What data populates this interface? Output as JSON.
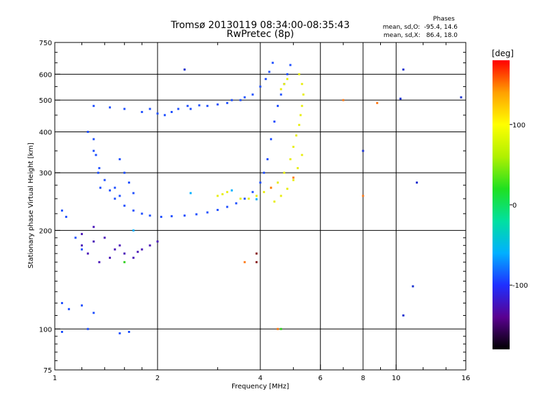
{
  "chart_data": {
    "type": "scatter",
    "title": "Tromsø 20130119 08:34:00-08:35:43",
    "subtitle": "RwPretec (8p)",
    "xlabel": "Frequency [MHz]",
    "ylabel": "Stationary phase Virtual Height [km]",
    "xscale": "log",
    "yscale": "log",
    "xlim": [
      1,
      16
    ],
    "ylim": [
      75,
      750
    ],
    "grid": true,
    "x_ticks": [
      1,
      2,
      4,
      6,
      8,
      10,
      16
    ],
    "x_tick_labels": [
      "1",
      "2",
      "4",
      "6",
      "8",
      "10",
      "16"
    ],
    "y_ticks": [
      75,
      100,
      200,
      300,
      400,
      500,
      600,
      750
    ],
    "y_tick_labels": [
      "75",
      "100",
      "200",
      "300",
      "400",
      "500",
      "600",
      "750"
    ],
    "legend_title": "Phases",
    "legend_lines": [
      "mean, sd,O:  -95.4, 14.6",
      "mean, sd,X:   86.4, 18.0"
    ],
    "colorbar": {
      "label": "[deg]",
      "range": [
        -180,
        180
      ],
      "tick_values": [
        100,
        0,
        -100
      ],
      "tick_labels": [
        "100",
        "0",
        "-100"
      ],
      "stops": [
        "#000000",
        "#5a0090",
        "#1f2fff",
        "#00b0ff",
        "#00e0a0",
        "#20e020",
        "#b0f000",
        "#ffff00",
        "#ffa000",
        "#ff0000"
      ]
    },
    "series": [
      {
        "color": "#1f4fff",
        "points": [
          [
            2.05,
            220
          ],
          [
            2.2,
            221
          ],
          [
            2.4,
            222
          ],
          [
            2.6,
            224
          ],
          [
            2.8,
            227
          ],
          [
            3.0,
            231
          ],
          [
            3.2,
            236
          ],
          [
            3.4,
            242
          ],
          [
            3.6,
            250
          ],
          [
            3.8,
            262
          ],
          [
            4.0,
            280
          ],
          [
            4.1,
            300
          ],
          [
            4.2,
            330
          ],
          [
            4.3,
            380
          ],
          [
            4.4,
            430
          ],
          [
            4.5,
            480
          ],
          [
            4.6,
            520
          ],
          [
            4.7,
            560
          ],
          [
            4.8,
            600
          ],
          [
            4.9,
            640
          ],
          [
            1.25,
            400
          ],
          [
            1.3,
            350
          ],
          [
            1.35,
            310
          ],
          [
            1.4,
            285
          ],
          [
            1.45,
            265
          ],
          [
            1.5,
            250
          ],
          [
            1.6,
            238
          ],
          [
            1.7,
            230
          ],
          [
            1.8,
            225
          ],
          [
            1.9,
            222
          ],
          [
            1.3,
            480
          ],
          [
            1.45,
            475
          ],
          [
            1.6,
            470
          ],
          [
            1.8,
            460
          ],
          [
            2.0,
            455
          ],
          [
            2.2,
            460
          ],
          [
            2.5,
            470
          ],
          [
            2.8,
            480
          ],
          [
            3.0,
            485
          ],
          [
            3.2,
            490
          ],
          [
            3.5,
            500
          ],
          [
            3.8,
            520
          ],
          [
            4.0,
            550
          ],
          [
            1.05,
            230
          ],
          [
            1.08,
            220
          ],
          [
            1.15,
            190
          ],
          [
            1.2,
            175
          ],
          [
            1.05,
            120
          ],
          [
            1.1,
            115
          ],
          [
            1.2,
            118
          ],
          [
            1.3,
            112
          ],
          [
            1.05,
            98
          ],
          [
            1.25,
            100
          ],
          [
            1.55,
            97
          ],
          [
            1.65,
            98
          ],
          [
            1.3,
            380
          ],
          [
            1.32,
            340
          ],
          [
            1.34,
            300
          ],
          [
            1.36,
            270
          ],
          [
            1.55,
            330
          ],
          [
            1.6,
            300
          ],
          [
            1.65,
            280
          ],
          [
            1.7,
            260
          ],
          [
            1.5,
            270
          ],
          [
            1.55,
            255
          ],
          [
            2.3,
            470
          ],
          [
            2.1,
            450
          ],
          [
            1.9,
            470
          ],
          [
            2.45,
            480
          ],
          [
            2.65,
            482
          ],
          [
            3.3,
            500
          ],
          [
            3.6,
            510
          ],
          [
            4.15,
            580
          ],
          [
            4.25,
            610
          ],
          [
            4.35,
            650
          ]
        ]
      },
      {
        "color": "#4a18b8",
        "points": [
          [
            1.2,
            180
          ],
          [
            1.3,
            185
          ],
          [
            1.4,
            190
          ],
          [
            1.5,
            175
          ],
          [
            1.6,
            170
          ],
          [
            1.7,
            165
          ],
          [
            1.8,
            175
          ],
          [
            1.9,
            180
          ],
          [
            2.0,
            185
          ],
          [
            1.25,
            170
          ],
          [
            1.35,
            160
          ],
          [
            1.45,
            165
          ],
          [
            1.55,
            180
          ],
          [
            1.75,
            172
          ],
          [
            1.2,
            195
          ],
          [
            1.3,
            205
          ]
        ]
      },
      {
        "color": "#e8ee10",
        "points": [
          [
            3.0,
            255
          ],
          [
            3.1,
            258
          ],
          [
            3.2,
            262
          ],
          [
            3.5,
            250
          ],
          [
            3.7,
            250
          ],
          [
            3.9,
            255
          ],
          [
            4.1,
            262
          ],
          [
            4.3,
            270
          ],
          [
            4.5,
            280
          ],
          [
            4.7,
            300
          ],
          [
            4.9,
            330
          ],
          [
            5.0,
            360
          ],
          [
            5.1,
            390
          ],
          [
            5.2,
            420
          ],
          [
            5.25,
            450
          ],
          [
            5.3,
            480
          ],
          [
            5.35,
            520
          ],
          [
            5.3,
            560
          ],
          [
            5.2,
            600
          ],
          [
            4.6,
            540
          ],
          [
            4.7,
            560
          ],
          [
            4.8,
            580
          ],
          [
            4.4,
            245
          ],
          [
            4.6,
            255
          ],
          [
            4.8,
            268
          ],
          [
            5.0,
            285
          ],
          [
            5.15,
            310
          ],
          [
            5.3,
            340
          ]
        ]
      },
      {
        "color": "#ff7a18",
        "points": [
          [
            7.0,
            500
          ],
          [
            8.0,
            255
          ],
          [
            3.6,
            160
          ],
          [
            4.5,
            100
          ],
          [
            5.0,
            290
          ],
          [
            4.3,
            270
          ],
          [
            8.8,
            490
          ]
        ]
      },
      {
        "color": "#00b0ff",
        "points": [
          [
            3.3,
            265
          ],
          [
            2.5,
            260
          ],
          [
            1.7,
            200
          ],
          [
            3.9,
            249
          ]
        ]
      },
      {
        "color": "#1830d0",
        "points": [
          [
            10.5,
            620
          ],
          [
            10.5,
            110
          ],
          [
            11.2,
            135
          ],
          [
            11.5,
            280
          ],
          [
            8.0,
            350
          ],
          [
            10.3,
            505
          ],
          [
            15.5,
            510
          ],
          [
            2.4,
            620
          ]
        ]
      },
      {
        "color": "#8a2020",
        "points": [
          [
            3.9,
            170
          ],
          [
            3.9,
            160
          ]
        ]
      },
      {
        "color": "#30d020",
        "points": [
          [
            4.6,
            100
          ],
          [
            1.6,
            160
          ]
        ]
      }
    ]
  }
}
